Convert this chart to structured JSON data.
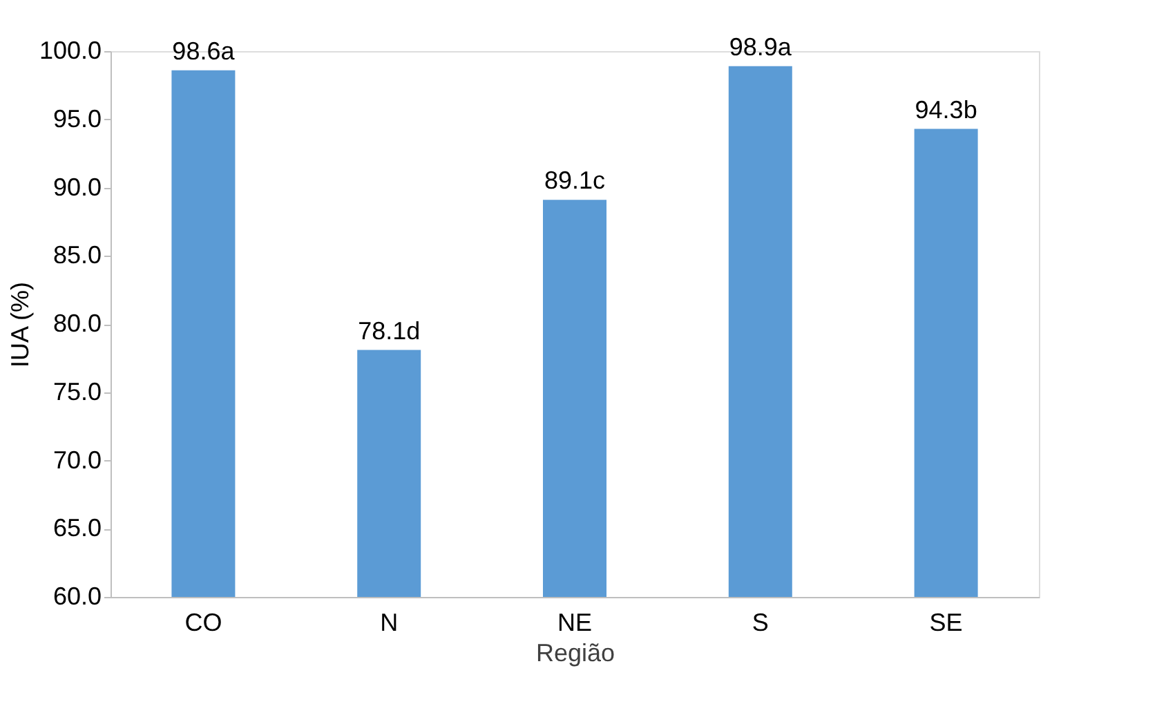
{
  "chart_data": {
    "type": "bar",
    "xlabel": "Região",
    "ylabel": "IUA (%)",
    "categories": [
      "CO",
      "N",
      "NE",
      "S",
      "SE"
    ],
    "values": [
      98.6,
      78.1,
      89.1,
      98.9,
      94.3
    ],
    "value_labels": [
      "98.6a",
      "78.1d",
      "89.1c",
      "98.9a",
      "94.3b"
    ],
    "color": "#5b9bd5",
    "ylim": [
      60,
      100
    ],
    "yticks": [
      {
        "value": 60,
        "label": "60.0"
      },
      {
        "value": 65,
        "label": "65.0"
      },
      {
        "value": 70,
        "label": "70.0"
      },
      {
        "value": 75,
        "label": "75.0"
      },
      {
        "value": 80,
        "label": "80.0"
      },
      {
        "value": 85,
        "label": "85.0"
      },
      {
        "value": 90,
        "label": "90.0"
      },
      {
        "value": 95,
        "label": "95.0"
      },
      {
        "value": 100,
        "label": "100.0"
      }
    ],
    "grid": false
  }
}
